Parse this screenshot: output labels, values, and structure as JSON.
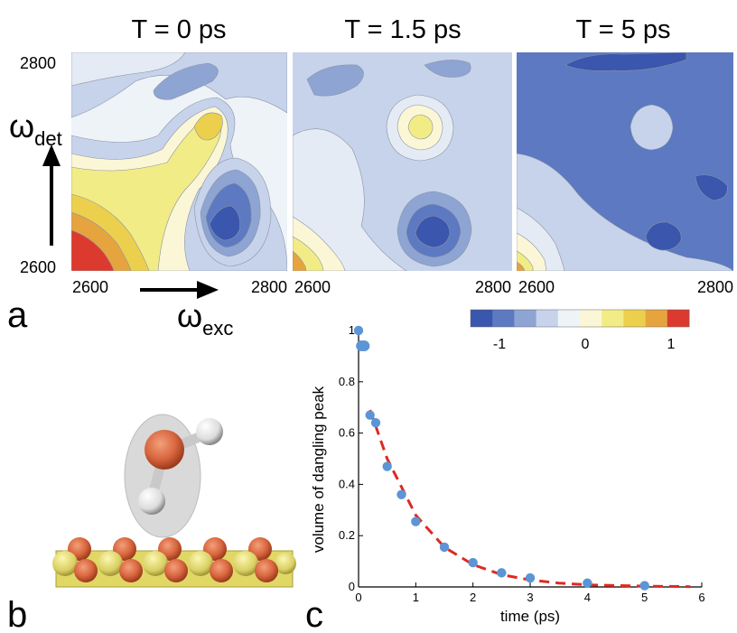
{
  "figure": {
    "panel_labels": {
      "a": "a",
      "b": "b",
      "c": "c"
    },
    "contour_panels": [
      {
        "title": "T = 0 ps",
        "x_tick_min": "2600",
        "x_tick_max": "2800"
      },
      {
        "title": "T = 1.5 ps",
        "x_tick_min": "2600",
        "x_tick_max": "2800"
      },
      {
        "title": "T = 5 ps",
        "x_tick_min": "2600",
        "x_tick_max": "2800"
      }
    ],
    "contour_y_ticks": {
      "max": "2800",
      "min": "2600"
    },
    "axis_symbols": {
      "detection": {
        "base": "ω",
        "sub": "det"
      },
      "excitation": {
        "base": "ω",
        "sub": "exc"
      }
    },
    "colorbar": {
      "tick_labels": [
        "-1",
        "0",
        "1"
      ],
      "colors": [
        "#3a56ad",
        "#5c79c1",
        "#8ea4d3",
        "#c7d3eb",
        "#eef3f8",
        "#fbf7d6",
        "#f2ec86",
        "#ecd04d",
        "#e6a43e",
        "#dd3a2f"
      ]
    },
    "colors": {
      "contour_dark": "#3a56ad",
      "contour_mid": "#7b93cc",
      "contour_light": "#b6c5e5",
      "contour_pale": "#e4ebf5",
      "contour_warm": "#f2ec86",
      "contour_hot": "#e6a43e",
      "fit_line": "#dd2a22",
      "points": "#5b95d6"
    },
    "molecule_icons": [
      "water-molecule-icon",
      "surface-slab-icon"
    ]
  },
  "chart_data": {
    "type": "scatter",
    "title": "",
    "xlabel": "time (ps)",
    "ylabel": "volume of dangling peak",
    "xlim": [
      0,
      6
    ],
    "ylim": [
      0,
      1
    ],
    "x_ticks": [
      0,
      1,
      2,
      3,
      4,
      5,
      6
    ],
    "y_ticks": [
      0,
      0.2,
      0.4,
      0.6,
      0.8,
      1
    ],
    "grid": false,
    "series": [
      {
        "kind": "points",
        "x": [
          0,
          0.05,
          0.1,
          0.2,
          0.3,
          0.5,
          0.75,
          1,
          1.5,
          2,
          2.5,
          3,
          4,
          5
        ],
        "y": [
          1,
          0.94,
          0.94,
          0.67,
          0.64,
          0.47,
          0.36,
          0.255,
          0.155,
          0.095,
          0.055,
          0.035,
          0.015,
          0.005
        ]
      },
      {
        "kind": "fit",
        "style": "dashed",
        "x": [
          0.2,
          0.5,
          1,
          1.5,
          2,
          2.5,
          3,
          3.5,
          4,
          5,
          5.8
        ],
        "y": [
          0.69,
          0.5,
          0.28,
          0.155,
          0.087,
          0.048,
          0.027,
          0.015,
          0.008,
          0.003,
          0.001
        ]
      }
    ]
  }
}
